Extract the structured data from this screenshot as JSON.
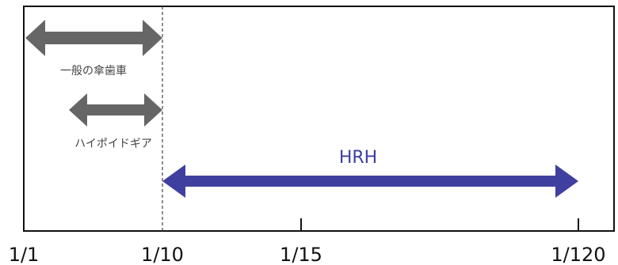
{
  "ranges": [
    {
      "label": "一般の傘歯車",
      "from": "1/1",
      "to": "1/10",
      "color": "#666666"
    },
    {
      "label": "ハイポイドギア",
      "from": "1/2",
      "to": "1/10",
      "color": "#666666"
    },
    {
      "label": "HRH",
      "from": "1/10",
      "to": "1/120",
      "color": "#3f3fa0"
    }
  ],
  "axis": {
    "ticks": [
      "1/1",
      "1/10",
      "1/15",
      "1/120"
    ]
  },
  "colors": {
    "frame": "#111111",
    "divider": "#444444"
  }
}
